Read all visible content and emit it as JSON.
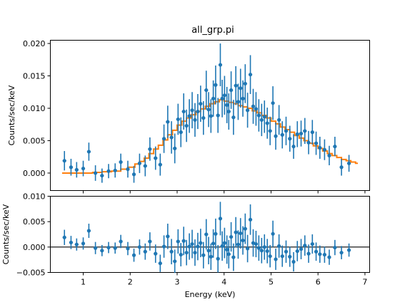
{
  "chart_data": [
    {
      "type": "scatter",
      "panel": "spectrum",
      "title": "all_grp.pi",
      "xlabel": "",
      "ylabel": "Counts/sec/keV",
      "xlim": [
        0.3,
        7.1
      ],
      "ylim": [
        -0.0027,
        0.0205
      ],
      "xticks": [
        1,
        2,
        3,
        4,
        5,
        6,
        7
      ],
      "yticks": [
        0.0,
        0.005,
        0.01,
        0.015,
        0.02
      ],
      "ytick_labels": [
        "0.000",
        "0.005",
        "0.010",
        "0.015",
        "0.020"
      ],
      "grid": false,
      "legend": "none",
      "colors": {
        "data": "#1f77b4",
        "model": "#ff7f0e"
      },
      "series": [
        {
          "kind": "data",
          "x": [
            0.6,
            0.74,
            0.86,
            1.0,
            1.12,
            1.26,
            1.4,
            1.54,
            1.68,
            1.8,
            1.95,
            2.08,
            2.2,
            2.32,
            2.42,
            2.54,
            2.64,
            2.72,
            2.8,
            2.88,
            2.95,
            3.02,
            3.08,
            3.14,
            3.2,
            3.26,
            3.32,
            3.38,
            3.44,
            3.5,
            3.56,
            3.62,
            3.67,
            3.72,
            3.77,
            3.82,
            3.87,
            3.92,
            3.96,
            4.01,
            4.06,
            4.1,
            4.15,
            4.2,
            4.25,
            4.3,
            4.35,
            4.4,
            4.45,
            4.5,
            4.56,
            4.62,
            4.68,
            4.74,
            4.8,
            4.86,
            4.92,
            4.98,
            5.04,
            5.1,
            5.17,
            5.24,
            5.32,
            5.4,
            5.48,
            5.56,
            5.64,
            5.72,
            5.8,
            5.88,
            5.96,
            6.04,
            6.14,
            6.24,
            6.36,
            6.5,
            6.66
          ],
          "y": [
            0.0019,
            0.0009,
            0.0005,
            0.0007,
            0.0033,
            0.0,
            -0.0004,
            0.0003,
            0.0004,
            0.0017,
            0.0006,
            -0.0002,
            0.0015,
            0.0011,
            0.0037,
            0.0023,
            0.0013,
            0.0053,
            0.0079,
            0.0055,
            0.0038,
            0.0083,
            0.0063,
            0.0095,
            0.0073,
            0.0088,
            0.0097,
            0.0082,
            0.0095,
            0.0107,
            0.0085,
            0.0128,
            0.0098,
            0.0088,
            0.0115,
            0.0136,
            0.0089,
            0.0167,
            0.0115,
            0.012,
            0.0105,
            0.0095,
            0.0128,
            0.0086,
            0.0135,
            0.011,
            0.0131,
            0.0115,
            0.0138,
            0.0097,
            0.0152,
            0.0103,
            0.0099,
            0.0089,
            0.0082,
            0.0087,
            0.0077,
            0.0065,
            0.0108,
            0.0057,
            0.0082,
            0.0059,
            0.0065,
            0.0053,
            0.0041,
            0.006,
            0.0061,
            0.0065,
            0.0047,
            0.0063,
            0.0046,
            0.0039,
            0.0036,
            0.0027,
            0.0041,
            0.0009,
            0.0015
          ],
          "yerr": [
            0.0015,
            0.0013,
            0.0012,
            0.0012,
            0.0014,
            0.0012,
            0.0011,
            0.0011,
            0.0011,
            0.0013,
            0.0013,
            0.0013,
            0.0015,
            0.0016,
            0.0018,
            0.0018,
            0.0017,
            0.0022,
            0.0025,
            0.0025,
            0.0023,
            0.0024,
            0.0023,
            0.0028,
            0.0025,
            0.0026,
            0.0028,
            0.0026,
            0.0027,
            0.0028,
            0.0026,
            0.003,
            0.0027,
            0.0026,
            0.0028,
            0.003,
            0.0027,
            0.0033,
            0.0029,
            0.003,
            0.0028,
            0.0028,
            0.0029,
            0.0027,
            0.003,
            0.0028,
            0.003,
            0.0028,
            0.003,
            0.0027,
            0.003,
            0.0027,
            0.0026,
            0.0025,
            0.0025,
            0.0025,
            0.0024,
            0.0022,
            0.0026,
            0.0021,
            0.0023,
            0.0021,
            0.0022,
            0.002,
            0.0019,
            0.002,
            0.002,
            0.002,
            0.0018,
            0.0019,
            0.0018,
            0.0017,
            0.0016,
            0.0015,
            0.0015,
            0.0013,
            0.0013
          ]
        },
        {
          "kind": "model",
          "x": [
            0.55,
            0.7,
            0.85,
            1.0,
            1.2,
            1.4,
            1.6,
            1.8,
            1.95,
            2.1,
            2.2,
            2.3,
            2.4,
            2.5,
            2.6,
            2.7,
            2.8,
            2.9,
            3.0,
            3.1,
            3.2,
            3.3,
            3.4,
            3.5,
            3.6,
            3.7,
            3.8,
            3.9,
            4.0,
            4.1,
            4.2,
            4.3,
            4.4,
            4.5,
            4.6,
            4.7,
            4.8,
            4.9,
            5.0,
            5.1,
            5.2,
            5.3,
            5.4,
            5.5,
            5.6,
            5.7,
            5.8,
            5.9,
            6.0,
            6.1,
            6.2,
            6.3,
            6.4,
            6.5,
            6.6,
            6.7,
            6.8
          ],
          "y": [
            0.0,
            0.0,
            0.0,
            0.0,
            0.0001,
            0.0002,
            0.0003,
            0.0006,
            0.0009,
            0.0014,
            0.0018,
            0.0023,
            0.003,
            0.0037,
            0.0043,
            0.0051,
            0.0059,
            0.0066,
            0.0074,
            0.008,
            0.0085,
            0.009,
            0.0095,
            0.0099,
            0.0103,
            0.0107,
            0.011,
            0.0113,
            0.0111,
            0.0109,
            0.0107,
            0.0104,
            0.0102,
            0.01,
            0.0096,
            0.0093,
            0.0089,
            0.0085,
            0.008,
            0.0076,
            0.0071,
            0.0067,
            0.0063,
            0.0058,
            0.0054,
            0.005,
            0.0046,
            0.0042,
            0.0038,
            0.0034,
            0.003,
            0.0027,
            0.0024,
            0.0021,
            0.0019,
            0.0017,
            0.0015
          ]
        }
      ]
    },
    {
      "type": "scatter",
      "panel": "residuals",
      "title": "",
      "xlabel": "Energy (keV)",
      "ylabel": "Counts/sec/keV",
      "xlim": [
        0.3,
        7.1
      ],
      "ylim": [
        -0.005,
        0.01
      ],
      "xticks": [
        1,
        2,
        3,
        4,
        5,
        6,
        7
      ],
      "xtick_labels": [
        "1",
        "2",
        "3",
        "4",
        "5",
        "6",
        "7"
      ],
      "yticks": [
        -0.005,
        0.0,
        0.005,
        0.01
      ],
      "ytick_labels": [
        "−0.005",
        "0.000",
        "0.005",
        "0.010"
      ],
      "zero_line": true,
      "grid": false,
      "legend": "none",
      "series": [
        {
          "kind": "residuals",
          "x": [
            0.6,
            0.74,
            0.86,
            1.0,
            1.12,
            1.26,
            1.4,
            1.54,
            1.68,
            1.8,
            1.95,
            2.08,
            2.2,
            2.32,
            2.42,
            2.54,
            2.64,
            2.72,
            2.8,
            2.88,
            2.95,
            3.02,
            3.08,
            3.14,
            3.2,
            3.26,
            3.32,
            3.38,
            3.44,
            3.5,
            3.56,
            3.62,
            3.67,
            3.72,
            3.77,
            3.82,
            3.87,
            3.92,
            3.96,
            4.01,
            4.06,
            4.1,
            4.15,
            4.2,
            4.25,
            4.3,
            4.35,
            4.4,
            4.45,
            4.5,
            4.56,
            4.62,
            4.68,
            4.74,
            4.8,
            4.86,
            4.92,
            4.98,
            5.04,
            5.1,
            5.17,
            5.24,
            5.32,
            5.4,
            5.48,
            5.56,
            5.64,
            5.72,
            5.8,
            5.88,
            5.96,
            6.04,
            6.14,
            6.24,
            6.36,
            6.5,
            6.66
          ],
          "y": [
            0.0019,
            0.0009,
            0.0005,
            0.0007,
            0.0032,
            -0.0002,
            -0.0007,
            -0.0001,
            -0.0002,
            0.0011,
            -0.0003,
            -0.0016,
            0.0,
            -0.0009,
            0.0011,
            -0.0013,
            -0.0032,
            0.0001,
            0.0021,
            -0.0009,
            -0.0028,
            0.0011,
            -0.0015,
            0.0012,
            -0.0011,
            0.0001,
            0.0006,
            -0.0011,
            0.0001,
            0.0008,
            -0.0016,
            0.0025,
            -0.0007,
            -0.0019,
            0.0007,
            0.0026,
            -0.0023,
            0.0056,
            0.0002,
            0.0008,
            -0.0005,
            -0.0014,
            0.002,
            -0.002,
            0.0029,
            0.0005,
            0.0027,
            0.0013,
            0.0036,
            -0.0003,
            0.0054,
            0.0008,
            0.0006,
            -0.0002,
            -0.0007,
            0.0,
            -0.0008,
            -0.0018,
            0.0026,
            -0.0024,
            0.0002,
            -0.0018,
            -0.0009,
            -0.0019,
            -0.0029,
            -0.0008,
            -0.0004,
            0.0003,
            -0.0013,
            0.0006,
            -0.0009,
            -0.0014,
            -0.0015,
            -0.002,
            -0.0001,
            -0.0011,
            -0.0006
          ],
          "yerr": [
            0.0015,
            0.0013,
            0.0012,
            0.0012,
            0.0014,
            0.0012,
            0.0011,
            0.0011,
            0.0011,
            0.0013,
            0.0013,
            0.0013,
            0.0015,
            0.0016,
            0.0018,
            0.0018,
            0.0017,
            0.0022,
            0.0025,
            0.0025,
            0.0023,
            0.0024,
            0.0023,
            0.0028,
            0.0025,
            0.0026,
            0.0028,
            0.0026,
            0.0027,
            0.0028,
            0.0026,
            0.003,
            0.0027,
            0.0026,
            0.0028,
            0.003,
            0.0027,
            0.0033,
            0.0029,
            0.003,
            0.0028,
            0.0028,
            0.0029,
            0.0027,
            0.003,
            0.0028,
            0.003,
            0.0028,
            0.003,
            0.0027,
            0.003,
            0.0027,
            0.0026,
            0.0025,
            0.0025,
            0.0025,
            0.0024,
            0.0022,
            0.0026,
            0.0021,
            0.0023,
            0.0021,
            0.0022,
            0.002,
            0.0019,
            0.002,
            0.002,
            0.002,
            0.0018,
            0.0019,
            0.0018,
            0.0017,
            0.0016,
            0.0015,
            0.0015,
            0.0013,
            0.0013
          ]
        }
      ]
    }
  ]
}
